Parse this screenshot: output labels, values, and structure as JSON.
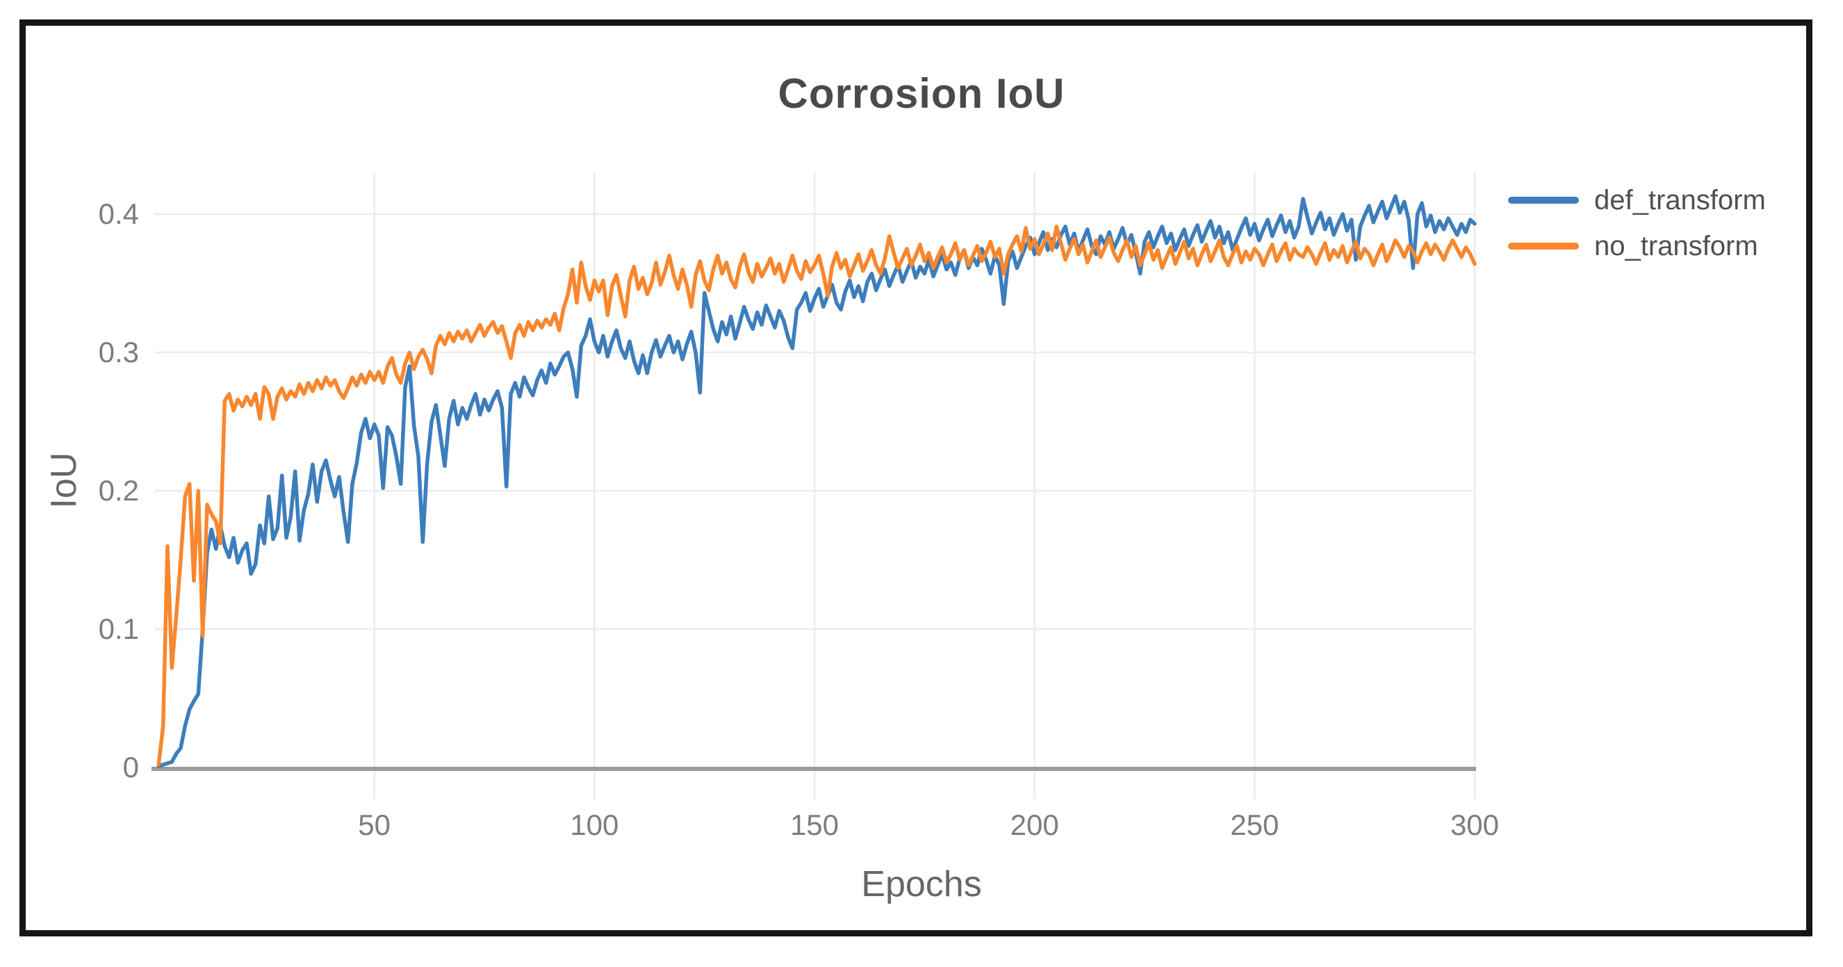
{
  "panel": {
    "background_color": "#ffffff",
    "frame_border_color": "#161616"
  },
  "style": {
    "grid_color": "#ebebeb",
    "axis_line_color": "#9a9a9a",
    "tick_label_color": "#7d7d7d",
    "axis_title_color": "#666666",
    "title_color": "#4a4a4a",
    "legend_label_color": "#4f4f4f"
  },
  "chart_data": {
    "type": "line",
    "title": "Corrosion IoU",
    "xlabel": "Epochs",
    "ylabel": "IoU",
    "xlim": [
      0,
      300
    ],
    "ylim": [
      0,
      0.43
    ],
    "x_ticks": [
      50,
      100,
      150,
      200,
      250,
      300
    ],
    "x_tick_labels": [
      "50",
      "100",
      "150",
      "200",
      "250",
      "300"
    ],
    "y_ticks": [
      0,
      0.1,
      0.2,
      0.3,
      0.4
    ],
    "y_tick_labels": [
      "0",
      "0.1",
      "0.2",
      "0.3",
      "0.4"
    ],
    "grid": true,
    "legend_position": "right-top-outside",
    "x_start": 1,
    "x_step": 1,
    "series": [
      {
        "name": "def_transform",
        "color": "#3d7dbc",
        "values": [
          0.001,
          0.002,
          0.003,
          0.004,
          0.01,
          0.014,
          0.03,
          0.042,
          0.048,
          0.053,
          0.1,
          0.155,
          0.172,
          0.158,
          0.175,
          0.16,
          0.152,
          0.166,
          0.148,
          0.157,
          0.162,
          0.14,
          0.147,
          0.175,
          0.162,
          0.196,
          0.165,
          0.173,
          0.211,
          0.166,
          0.181,
          0.214,
          0.164,
          0.186,
          0.198,
          0.219,
          0.192,
          0.214,
          0.222,
          0.208,
          0.196,
          0.21,
          0.185,
          0.163,
          0.205,
          0.22,
          0.242,
          0.252,
          0.238,
          0.248,
          0.24,
          0.202,
          0.246,
          0.24,
          0.225,
          0.205,
          0.275,
          0.29,
          0.247,
          0.225,
          0.163,
          0.22,
          0.25,
          0.262,
          0.24,
          0.218,
          0.252,
          0.265,
          0.248,
          0.26,
          0.252,
          0.262,
          0.27,
          0.255,
          0.266,
          0.258,
          0.266,
          0.272,
          0.26,
          0.203,
          0.27,
          0.278,
          0.268,
          0.282,
          0.275,
          0.269,
          0.28,
          0.287,
          0.278,
          0.292,
          0.284,
          0.29,
          0.297,
          0.3,
          0.288,
          0.268,
          0.305,
          0.312,
          0.324,
          0.308,
          0.3,
          0.312,
          0.297,
          0.308,
          0.316,
          0.303,
          0.296,
          0.308,
          0.294,
          0.285,
          0.298,
          0.285,
          0.3,
          0.309,
          0.297,
          0.305,
          0.312,
          0.3,
          0.308,
          0.295,
          0.306,
          0.315,
          0.3,
          0.271,
          0.343,
          0.33,
          0.317,
          0.308,
          0.322,
          0.313,
          0.326,
          0.31,
          0.321,
          0.333,
          0.324,
          0.317,
          0.329,
          0.32,
          0.334,
          0.326,
          0.318,
          0.33,
          0.323,
          0.311,
          0.303,
          0.331,
          0.336,
          0.343,
          0.33,
          0.339,
          0.346,
          0.333,
          0.341,
          0.349,
          0.336,
          0.331,
          0.344,
          0.352,
          0.34,
          0.348,
          0.337,
          0.351,
          0.357,
          0.345,
          0.353,
          0.36,
          0.348,
          0.356,
          0.363,
          0.351,
          0.359,
          0.366,
          0.354,
          0.362,
          0.357,
          0.367,
          0.355,
          0.363,
          0.371,
          0.36,
          0.365,
          0.356,
          0.368,
          0.374,
          0.361,
          0.369,
          0.363,
          0.375,
          0.367,
          0.357,
          0.37,
          0.363,
          0.335,
          0.366,
          0.373,
          0.361,
          0.369,
          0.377,
          0.383,
          0.371,
          0.379,
          0.387,
          0.374,
          0.382,
          0.376,
          0.385,
          0.391,
          0.378,
          0.386,
          0.373,
          0.381,
          0.389,
          0.377,
          0.371,
          0.384,
          0.378,
          0.387,
          0.375,
          0.382,
          0.39,
          0.378,
          0.385,
          0.372,
          0.357,
          0.38,
          0.387,
          0.376,
          0.384,
          0.391,
          0.379,
          0.386,
          0.374,
          0.382,
          0.389,
          0.377,
          0.385,
          0.392,
          0.38,
          0.388,
          0.395,
          0.383,
          0.391,
          0.379,
          0.387,
          0.374,
          0.382,
          0.39,
          0.397,
          0.385,
          0.393,
          0.381,
          0.389,
          0.396,
          0.384,
          0.392,
          0.399,
          0.387,
          0.395,
          0.383,
          0.391,
          0.411,
          0.398,
          0.386,
          0.394,
          0.401,
          0.389,
          0.397,
          0.385,
          0.393,
          0.4,
          0.388,
          0.396,
          0.367,
          0.391,
          0.399,
          0.406,
          0.394,
          0.402,
          0.409,
          0.397,
          0.405,
          0.413,
          0.401,
          0.409,
          0.396,
          0.361,
          0.4,
          0.408,
          0.391,
          0.399,
          0.387,
          0.395,
          0.389,
          0.397,
          0.391,
          0.385,
          0.393,
          0.387,
          0.396,
          0.393
        ]
      },
      {
        "name": "no_transform",
        "color": "#f8872d",
        "values": [
          0.002,
          0.03,
          0.16,
          0.072,
          0.11,
          0.15,
          0.196,
          0.205,
          0.135,
          0.2,
          0.095,
          0.19,
          0.183,
          0.178,
          0.162,
          0.265,
          0.27,
          0.258,
          0.266,
          0.261,
          0.268,
          0.262,
          0.27,
          0.252,
          0.275,
          0.27,
          0.252,
          0.268,
          0.274,
          0.266,
          0.272,
          0.268,
          0.277,
          0.27,
          0.278,
          0.272,
          0.28,
          0.274,
          0.282,
          0.276,
          0.28,
          0.272,
          0.267,
          0.274,
          0.282,
          0.276,
          0.284,
          0.278,
          0.286,
          0.28,
          0.286,
          0.278,
          0.29,
          0.296,
          0.284,
          0.278,
          0.292,
          0.3,
          0.288,
          0.297,
          0.302,
          0.295,
          0.285,
          0.305,
          0.312,
          0.306,
          0.314,
          0.308,
          0.315,
          0.31,
          0.316,
          0.308,
          0.314,
          0.32,
          0.312,
          0.318,
          0.322,
          0.314,
          0.319,
          0.308,
          0.296,
          0.314,
          0.32,
          0.312,
          0.322,
          0.316,
          0.323,
          0.318,
          0.324,
          0.32,
          0.328,
          0.316,
          0.332,
          0.342,
          0.36,
          0.336,
          0.365,
          0.348,
          0.338,
          0.352,
          0.344,
          0.352,
          0.327,
          0.348,
          0.356,
          0.341,
          0.326,
          0.352,
          0.362,
          0.346,
          0.354,
          0.342,
          0.35,
          0.365,
          0.349,
          0.358,
          0.37,
          0.356,
          0.346,
          0.36,
          0.349,
          0.333,
          0.356,
          0.366,
          0.352,
          0.345,
          0.36,
          0.37,
          0.357,
          0.365,
          0.353,
          0.347,
          0.362,
          0.371,
          0.358,
          0.351,
          0.364,
          0.355,
          0.361,
          0.368,
          0.357,
          0.364,
          0.351,
          0.36,
          0.37,
          0.359,
          0.353,
          0.366,
          0.358,
          0.363,
          0.37,
          0.357,
          0.341,
          0.362,
          0.372,
          0.361,
          0.367,
          0.355,
          0.363,
          0.371,
          0.359,
          0.366,
          0.374,
          0.363,
          0.357,
          0.368,
          0.384,
          0.372,
          0.361,
          0.368,
          0.375,
          0.363,
          0.37,
          0.378,
          0.366,
          0.372,
          0.361,
          0.369,
          0.376,
          0.365,
          0.371,
          0.379,
          0.367,
          0.374,
          0.363,
          0.37,
          0.377,
          0.366,
          0.372,
          0.38,
          0.369,
          0.375,
          0.357,
          0.371,
          0.378,
          0.384,
          0.373,
          0.39,
          0.375,
          0.382,
          0.371,
          0.378,
          0.386,
          0.374,
          0.391,
          0.379,
          0.367,
          0.375,
          0.382,
          0.371,
          0.378,
          0.365,
          0.373,
          0.381,
          0.369,
          0.376,
          0.383,
          0.372,
          0.366,
          0.374,
          0.381,
          0.369,
          0.377,
          0.363,
          0.371,
          0.379,
          0.367,
          0.374,
          0.361,
          0.369,
          0.376,
          0.364,
          0.372,
          0.38,
          0.368,
          0.375,
          0.363,
          0.371,
          0.378,
          0.366,
          0.373,
          0.381,
          0.369,
          0.363,
          0.371,
          0.377,
          0.365,
          0.373,
          0.367,
          0.375,
          0.371,
          0.363,
          0.371,
          0.378,
          0.366,
          0.373,
          0.379,
          0.367,
          0.375,
          0.371,
          0.369,
          0.376,
          0.371,
          0.364,
          0.372,
          0.379,
          0.367,
          0.374,
          0.369,
          0.377,
          0.365,
          0.373,
          0.38,
          0.368,
          0.375,
          0.371,
          0.363,
          0.371,
          0.378,
          0.366,
          0.373,
          0.381,
          0.376,
          0.369,
          0.377,
          0.373,
          0.365,
          0.373,
          0.379,
          0.371,
          0.378,
          0.373,
          0.367,
          0.375,
          0.381,
          0.375,
          0.369,
          0.376,
          0.371,
          0.364
        ]
      }
    ]
  }
}
